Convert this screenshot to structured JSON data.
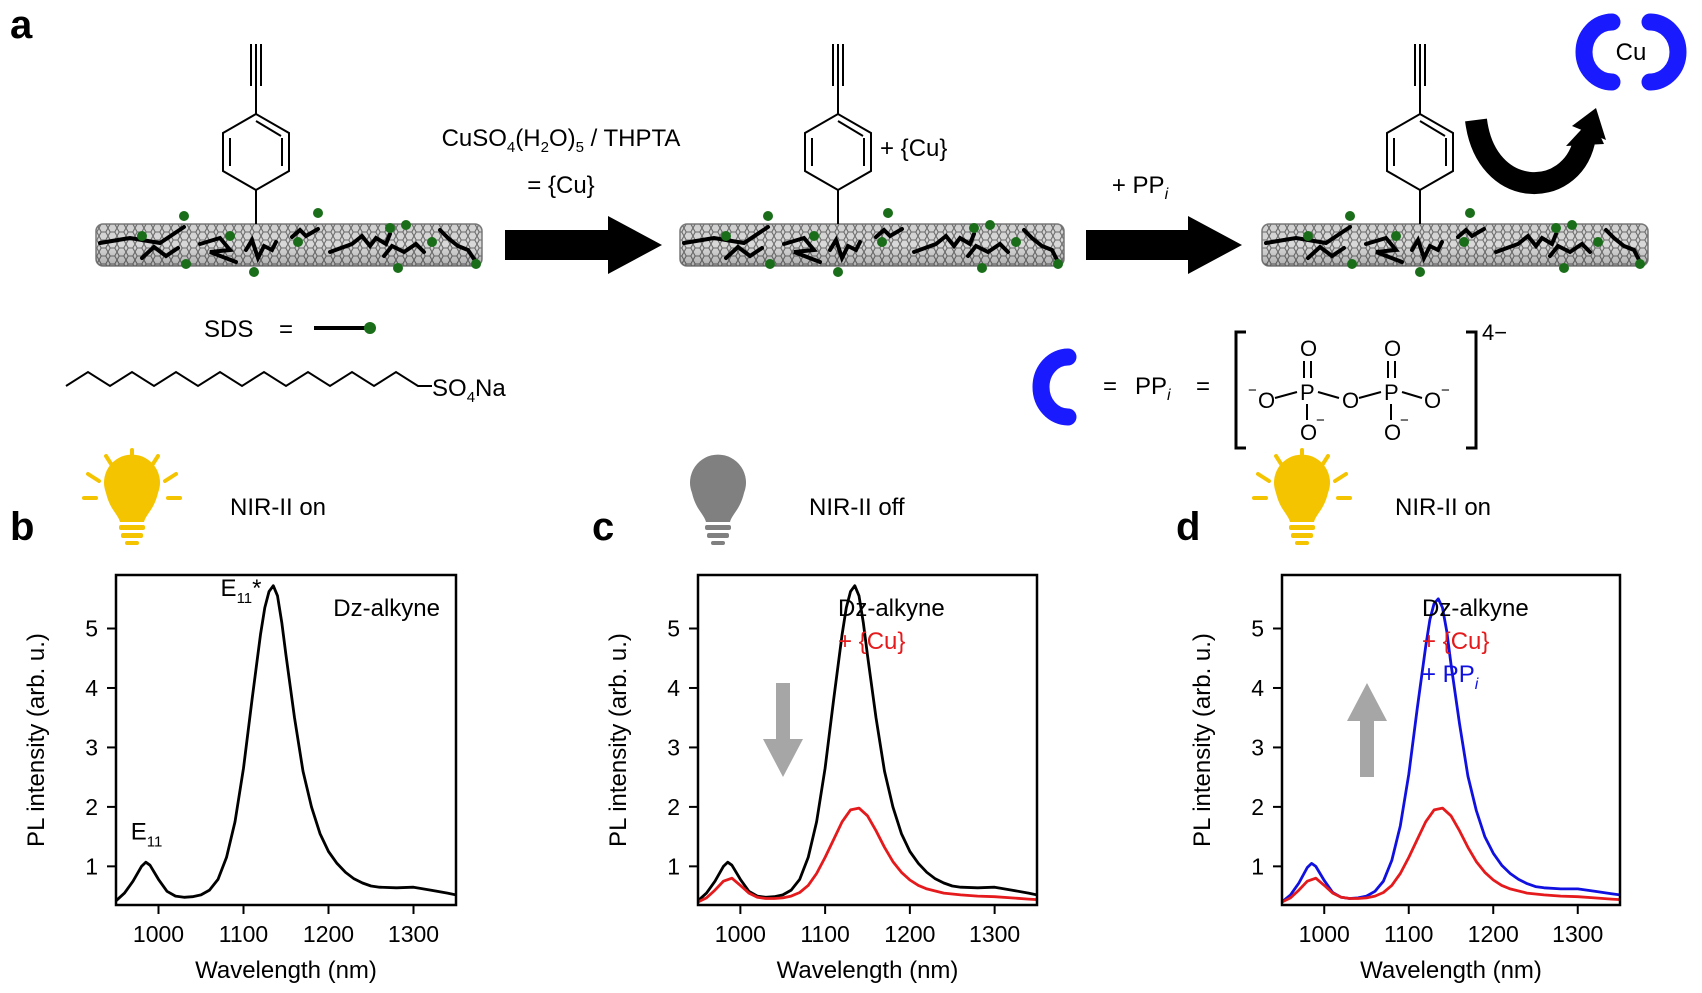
{
  "panel_a": {
    "letter": "a",
    "reagent_line1": "CuSO",
    "reagent_sub1": "4",
    "reagent_mid": "(H",
    "reagent_sub2": "2",
    "reagent_end": "O)",
    "reagent_sub3": "5",
    "reagent_tail": " / THPTA",
    "reagent_line2": "= {Cu}",
    "plus_cu": "+ {Cu}",
    "plus_ppi": "+ PP",
    "ppi_subscript": "i",
    "cu_badge": "Cu",
    "sds_label": "SDS",
    "sds_equals": "=",
    "so4na_main": "SO",
    "so4na_sub": "4",
    "so4na_tail": "Na",
    "ppi_legend_equals": "=",
    "ppi_legend": "PP",
    "ppi_legend_sub": "i",
    "ppi_legend_equals2": "=",
    "charge": "4−",
    "atom_O": "O",
    "atom_P": "P",
    "minus": "−"
  },
  "panels": [
    {
      "letter": "b",
      "status_label": "NIR-II on",
      "bulb": "on"
    },
    {
      "letter": "c",
      "status_label": "NIR-II off",
      "bulb": "off"
    },
    {
      "letter": "d",
      "status_label": "NIR-II on",
      "bulb": "on"
    }
  ],
  "colors": {
    "black": "#000000",
    "red": "#e41a1c",
    "blue": "#1010e0",
    "bulb_on": "#f5c400",
    "bulb_off": "#808080",
    "arrow_gray": "#a6a6a6",
    "ppi_blue": "#1a1aff",
    "sds_green": "#1a6e1a"
  },
  "chart_data": [
    {
      "type": "line",
      "xlabel": "Wavelength (nm)",
      "ylabel": "PL intensity (arb. u.)",
      "xlim": [
        950,
        1350
      ],
      "ylim": [
        0.35,
        5.9
      ],
      "xticks": [
        1000,
        1100,
        1200,
        1300
      ],
      "yticks": [
        1,
        2,
        3,
        4,
        5
      ],
      "legend": [
        "Dz-alkyne"
      ],
      "annotations": {
        "e11": "E",
        "e11_sub": "11",
        "e11star": "E",
        "e11star_sub": "11",
        "e11star_mark": "*"
      },
      "series": [
        {
          "name": "Dz-alkyne",
          "color": "#000000",
          "x": [
            950,
            960,
            970,
            980,
            985,
            990,
            1000,
            1010,
            1020,
            1030,
            1040,
            1050,
            1060,
            1070,
            1080,
            1090,
            1100,
            1110,
            1120,
            1125,
            1130,
            1135,
            1140,
            1145,
            1150,
            1160,
            1170,
            1180,
            1190,
            1200,
            1210,
            1220,
            1230,
            1240,
            1250,
            1260,
            1280,
            1300,
            1320,
            1340,
            1350
          ],
          "y": [
            0.42,
            0.55,
            0.75,
            1.0,
            1.07,
            1.02,
            0.78,
            0.58,
            0.5,
            0.48,
            0.49,
            0.52,
            0.6,
            0.78,
            1.15,
            1.75,
            2.65,
            3.8,
            4.9,
            5.35,
            5.62,
            5.72,
            5.55,
            5.1,
            4.55,
            3.5,
            2.6,
            2.0,
            1.55,
            1.25,
            1.05,
            0.9,
            0.79,
            0.72,
            0.67,
            0.65,
            0.64,
            0.65,
            0.6,
            0.55,
            0.52
          ]
        }
      ]
    },
    {
      "type": "line",
      "xlabel": "Wavelength (nm)",
      "ylabel": "PL intensity (arb. u.)",
      "xlim": [
        950,
        1350
      ],
      "ylim": [
        0.35,
        5.9
      ],
      "xticks": [
        1000,
        1100,
        1200,
        1300
      ],
      "yticks": [
        1,
        2,
        3,
        4,
        5
      ],
      "legend": [
        "Dz-alkyne",
        "+ {Cu}"
      ],
      "series": [
        {
          "name": "Dz-alkyne",
          "color": "#000000",
          "x": [
            950,
            960,
            970,
            980,
            985,
            990,
            1000,
            1010,
            1020,
            1030,
            1040,
            1050,
            1060,
            1070,
            1080,
            1090,
            1100,
            1110,
            1120,
            1125,
            1130,
            1135,
            1140,
            1145,
            1150,
            1160,
            1170,
            1180,
            1190,
            1200,
            1210,
            1220,
            1230,
            1240,
            1250,
            1260,
            1280,
            1300,
            1320,
            1340,
            1350
          ],
          "y": [
            0.42,
            0.55,
            0.75,
            1.0,
            1.07,
            1.02,
            0.78,
            0.58,
            0.5,
            0.48,
            0.49,
            0.52,
            0.6,
            0.78,
            1.15,
            1.75,
            2.65,
            3.8,
            4.9,
            5.35,
            5.62,
            5.72,
            5.55,
            5.1,
            4.55,
            3.5,
            2.6,
            2.0,
            1.55,
            1.25,
            1.05,
            0.9,
            0.79,
            0.72,
            0.67,
            0.65,
            0.64,
            0.65,
            0.6,
            0.55,
            0.52
          ]
        },
        {
          "name": "+ {Cu}",
          "color": "#e41a1c",
          "x": [
            950,
            960,
            970,
            980,
            990,
            1000,
            1010,
            1020,
            1030,
            1040,
            1050,
            1060,
            1070,
            1080,
            1090,
            1100,
            1110,
            1120,
            1130,
            1140,
            1150,
            1160,
            1170,
            1180,
            1190,
            1200,
            1210,
            1220,
            1240,
            1260,
            1280,
            1300,
            1320,
            1340,
            1350
          ],
          "y": [
            0.4,
            0.47,
            0.6,
            0.75,
            0.8,
            0.68,
            0.55,
            0.48,
            0.46,
            0.46,
            0.47,
            0.5,
            0.56,
            0.68,
            0.88,
            1.15,
            1.45,
            1.75,
            1.95,
            1.98,
            1.85,
            1.6,
            1.32,
            1.08,
            0.9,
            0.77,
            0.68,
            0.62,
            0.55,
            0.52,
            0.5,
            0.49,
            0.47,
            0.45,
            0.44
          ]
        }
      ]
    },
    {
      "type": "line",
      "xlabel": "Wavelength (nm)",
      "ylabel": "PL intensity (arb. u.)",
      "xlim": [
        950,
        1350
      ],
      "ylim": [
        0.35,
        5.9
      ],
      "xticks": [
        1000,
        1100,
        1200,
        1300
      ],
      "yticks": [
        1,
        2,
        3,
        4,
        5
      ],
      "legend": [
        "Dz-alkyne",
        "+ {Cu}",
        "+ PP"
      ],
      "legend_sub": "i",
      "series": [
        {
          "name": "+ PP",
          "color": "#1010e0",
          "x": [
            950,
            960,
            970,
            980,
            985,
            990,
            1000,
            1010,
            1020,
            1030,
            1040,
            1050,
            1060,
            1070,
            1080,
            1090,
            1100,
            1110,
            1120,
            1125,
            1130,
            1135,
            1140,
            1145,
            1150,
            1160,
            1170,
            1180,
            1190,
            1200,
            1210,
            1220,
            1230,
            1240,
            1250,
            1260,
            1280,
            1300,
            1320,
            1340,
            1350
          ],
          "y": [
            0.4,
            0.52,
            0.72,
            0.98,
            1.05,
            1.0,
            0.76,
            0.56,
            0.48,
            0.46,
            0.47,
            0.5,
            0.58,
            0.75,
            1.1,
            1.68,
            2.55,
            3.65,
            4.7,
            5.15,
            5.42,
            5.5,
            5.35,
            4.95,
            4.4,
            3.4,
            2.52,
            1.94,
            1.5,
            1.22,
            1.02,
            0.88,
            0.78,
            0.71,
            0.66,
            0.64,
            0.62,
            0.62,
            0.58,
            0.54,
            0.52
          ]
        },
        {
          "name": "+ {Cu}",
          "color": "#e41a1c",
          "x": [
            950,
            960,
            970,
            980,
            990,
            1000,
            1010,
            1020,
            1030,
            1040,
            1050,
            1060,
            1070,
            1080,
            1090,
            1100,
            1110,
            1120,
            1130,
            1140,
            1150,
            1160,
            1170,
            1180,
            1190,
            1200,
            1210,
            1220,
            1240,
            1260,
            1280,
            1300,
            1320,
            1340,
            1350
          ],
          "y": [
            0.4,
            0.47,
            0.6,
            0.75,
            0.8,
            0.68,
            0.55,
            0.48,
            0.46,
            0.46,
            0.47,
            0.5,
            0.56,
            0.68,
            0.88,
            1.15,
            1.45,
            1.75,
            1.95,
            1.98,
            1.85,
            1.6,
            1.32,
            1.08,
            0.9,
            0.77,
            0.68,
            0.62,
            0.55,
            0.52,
            0.5,
            0.49,
            0.47,
            0.45,
            0.44
          ]
        }
      ]
    }
  ]
}
